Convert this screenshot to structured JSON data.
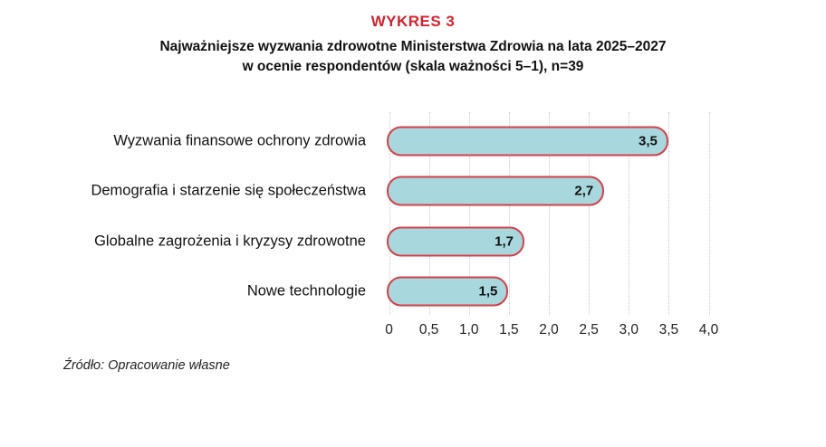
{
  "header": {
    "kicker": "WYKRES 3",
    "title_line1": "Najważniejsze wyzwania zdrowotne Ministerstwa Zdrowia na lata 2025–2027",
    "title_line2": "w ocenie respondentów (skala ważności 5–1), n=39"
  },
  "chart_data": {
    "type": "bar",
    "orientation": "horizontal",
    "title": "Najważniejsze wyzwania zdrowotne Ministerstwa Zdrowia na lata 2025–2027 w ocenie respondentów (skala ważności 5–1), n=39",
    "categories": [
      "Wyzwania finansowe ochrony zdrowia",
      "Demografia i starzenie się społeczeństwa",
      "Globalne zagrożenia i kryzysy zdrowotne",
      "Nowe technologie"
    ],
    "values": [
      3.5,
      2.7,
      1.7,
      1.5
    ],
    "value_labels": [
      "3,5",
      "2,7",
      "1,7",
      "1,5"
    ],
    "xlim": [
      0,
      4
    ],
    "x_ticks": [
      {
        "value": 0.0,
        "label": "0"
      },
      {
        "value": 0.5,
        "label": "0,5"
      },
      {
        "value": 1.0,
        "label": "1,0"
      },
      {
        "value": 1.5,
        "label": "1,5"
      },
      {
        "value": 2.0,
        "label": "2,0"
      },
      {
        "value": 2.5,
        "label": "2,5"
      },
      {
        "value": 3.0,
        "label": "3,0"
      },
      {
        "value": 3.5,
        "label": "3,5"
      },
      {
        "value": 4.0,
        "label": "4,0"
      }
    ],
    "grid": "dotted-vertical",
    "legend": "none",
    "xlabel": "",
    "ylabel": ""
  },
  "colors": {
    "kicker_red": "#d2232e",
    "bar_fill": "#a8d8de",
    "bar_border": "#d2404a",
    "gridline": "#c6c6c6",
    "text": "#111111"
  },
  "footer": {
    "source": "Źródło: Opracowanie własne"
  }
}
